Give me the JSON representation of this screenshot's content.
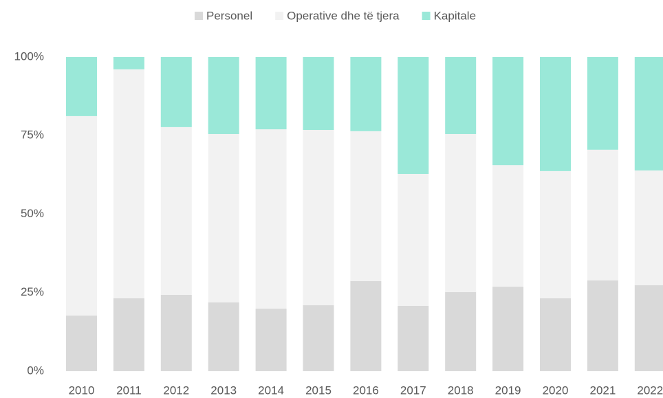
{
  "chart_data": {
    "type": "stacked_bar",
    "categories": [
      "2010",
      "2011",
      "2012",
      "2013",
      "2014",
      "2015",
      "2016",
      "2017",
      "2018",
      "2019",
      "2020",
      "2021",
      "2022"
    ],
    "series": [
      {
        "name": "Personel",
        "color": "#d9d9d9",
        "values": [
          17.7,
          23.2,
          24.3,
          21.9,
          19.9,
          21.0,
          28.7,
          20.8,
          25.2,
          26.9,
          23.2,
          28.9,
          27.4
        ]
      },
      {
        "name": "Operative dhe të tjera",
        "color": "#f2f2f2",
        "values": [
          63.5,
          72.9,
          53.4,
          53.6,
          57.1,
          55.8,
          47.7,
          42.0,
          50.3,
          38.7,
          40.5,
          41.6,
          36.5
        ]
      },
      {
        "name": "Kapitale",
        "color": "#9ae8d8",
        "values": [
          18.8,
          3.9,
          22.3,
          24.5,
          23.0,
          23.2,
          23.6,
          37.2,
          24.5,
          34.4,
          36.3,
          29.5,
          36.1
        ]
      }
    ],
    "ylim": [
      0,
      100
    ],
    "yticks": [
      {
        "value": 0,
        "label": "0%"
      },
      {
        "value": 25,
        "label": "25%"
      },
      {
        "value": 50,
        "label": "50%"
      },
      {
        "value": 75,
        "label": "75%"
      },
      {
        "value": 100,
        "label": "100%"
      }
    ],
    "legend": "top"
  }
}
